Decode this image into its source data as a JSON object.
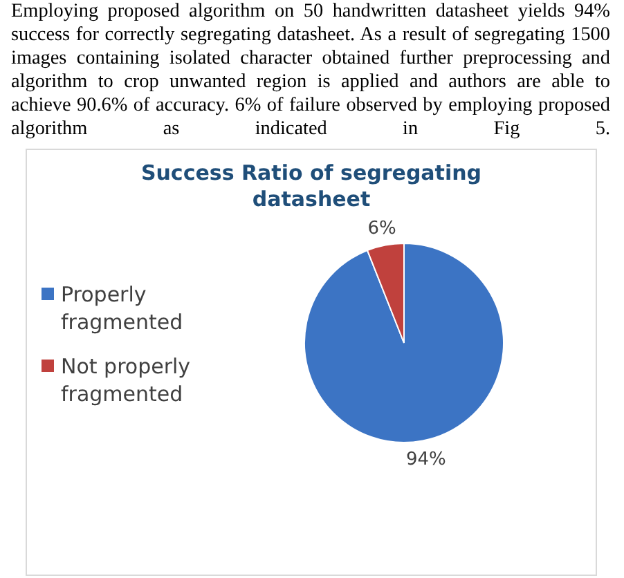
{
  "chart_data": {
    "type": "pie",
    "title": "Success Ratio of segregating datasheet",
    "categories": [
      "Properly fragmented",
      "Not properly fragmented"
    ],
    "values": [
      94,
      6
    ],
    "colors": [
      "#3c74c4",
      "#c0413d"
    ],
    "value_labels": [
      "94%",
      "6%"
    ],
    "legend": "left",
    "annotations": [
      "Employing proposed algorithm on 50 handwritten datasheet yields 94% success for correctly segregating datasheet. As a result of segregating 1500 images containing isolated character obtained further preprocessing and algorithm to crop unwanted region is applied and authors are able to achieve 90.6% of accuracy. 6% of failure observed by employing proposed algorithm as indicated in Fig 5."
    ]
  }
}
